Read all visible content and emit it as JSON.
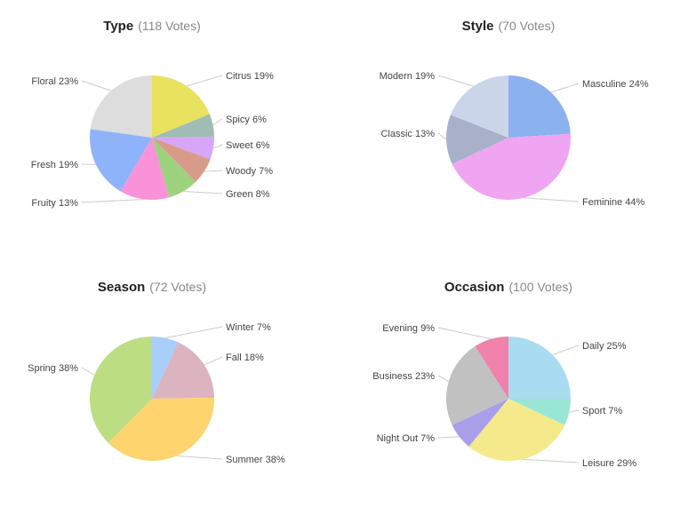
{
  "chart_data": [
    {
      "type": "pie",
      "title": "Type",
      "subtitle": "(118 Votes)",
      "slices": [
        {
          "label": "Citrus",
          "value": 19,
          "value_label": "19%",
          "color": "#e9e25f"
        },
        {
          "label": "Spicy",
          "value": 6,
          "value_label": "6%",
          "color": "#9fbdb4"
        },
        {
          "label": "Sweet",
          "value": 6,
          "value_label": "6%",
          "color": "#d7a6f7"
        },
        {
          "label": "Woody",
          "value": 7,
          "value_label": "7%",
          "color": "#d99b89"
        },
        {
          "label": "Green",
          "value": 8,
          "value_label": "8%",
          "color": "#9dd27f"
        },
        {
          "label": "Fruity",
          "value": 13,
          "value_label": "13%",
          "color": "#fa92d9"
        },
        {
          "label": "Fresh",
          "value": 19,
          "value_label": "19%",
          "color": "#8fb3fb"
        },
        {
          "label": "Floral",
          "value": 23,
          "value_label": "23%",
          "color": "#dddddd"
        }
      ]
    },
    {
      "type": "pie",
      "title": "Style",
      "subtitle": "(70 Votes)",
      "slices": [
        {
          "label": "Masculine",
          "value": 24,
          "value_label": "24%",
          "color": "#8bb1ef"
        },
        {
          "label": "Feminine",
          "value": 44,
          "value_label": "44%",
          "color": "#efa5f1"
        },
        {
          "label": "Classic",
          "value": 13,
          "value_label": "13%",
          "color": "#a9b0c9"
        },
        {
          "label": "Modern",
          "value": 19,
          "value_label": "19%",
          "color": "#cad5ea"
        }
      ]
    },
    {
      "type": "pie",
      "title": "Season",
      "subtitle": "(72 Votes)",
      "slices": [
        {
          "label": "Winter",
          "value": 7,
          "value_label": "7%",
          "color": "#a8cffa"
        },
        {
          "label": "Fall",
          "value": 18,
          "value_label": "18%",
          "color": "#dbb4bf"
        },
        {
          "label": "Summer",
          "value": 38,
          "value_label": "38%",
          "color": "#fed46f"
        },
        {
          "label": "Spring",
          "value": 38,
          "value_label": "38%",
          "color": "#bcdd81"
        }
      ]
    },
    {
      "type": "pie",
      "title": "Occasion",
      "subtitle": "(100 Votes)",
      "slices": [
        {
          "label": "Daily",
          "value": 25,
          "value_label": "25%",
          "color": "#a9dbf1"
        },
        {
          "label": "Sport",
          "value": 7,
          "value_label": "7%",
          "color": "#9ae6d5"
        },
        {
          "label": "Leisure",
          "value": 29,
          "value_label": "29%",
          "color": "#f5ea8b"
        },
        {
          "label": "Night Out",
          "value": 7,
          "value_label": "7%",
          "color": "#a99ee9"
        },
        {
          "label": "Business",
          "value": 23,
          "value_label": "23%",
          "color": "#c1c1c1"
        },
        {
          "label": "Evening",
          "value": 9,
          "value_label": "9%",
          "color": "#f082ab"
        }
      ]
    }
  ]
}
